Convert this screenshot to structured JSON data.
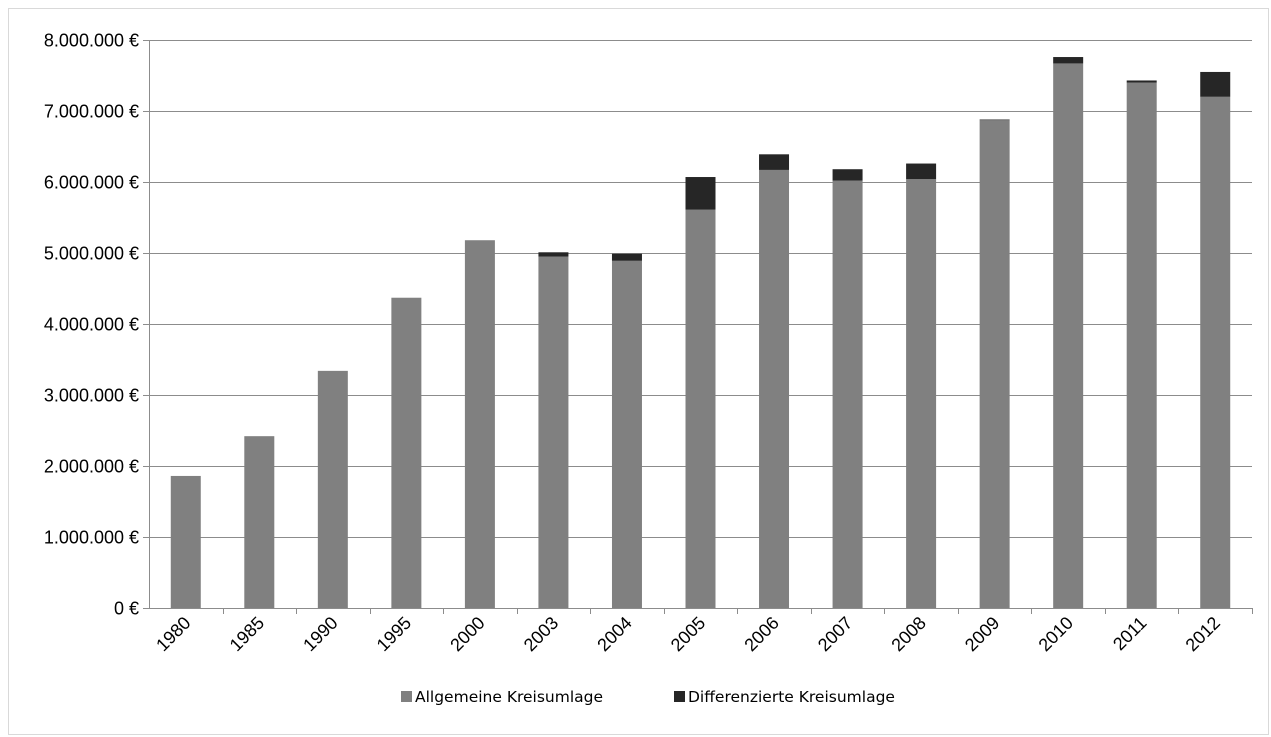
{
  "chart_data": {
    "type": "bar",
    "stacked": true,
    "categories": [
      "1980",
      "1985",
      "1990",
      "1995",
      "2000",
      "2003",
      "2004",
      "2005",
      "2006",
      "2007",
      "2008",
      "2009",
      "2010",
      "2011",
      "2012"
    ],
    "series": [
      {
        "name": "Allgemeine Kreisumlage",
        "color": "#808080",
        "values": [
          1860000,
          2420000,
          3340000,
          4370000,
          5180000,
          4950000,
          4890000,
          5610000,
          6170000,
          6020000,
          6040000,
          6870000,
          7670000,
          7400000,
          7200000
        ]
      },
      {
        "name": "Differenzierte Kreisumlage",
        "color": "#262626",
        "values": [
          0,
          0,
          0,
          0,
          0,
          60000,
          100000,
          460000,
          220000,
          160000,
          220000,
          10000,
          90000,
          30000,
          350000
        ]
      }
    ],
    "ylim": [
      0,
      8000000
    ],
    "yticks": [
      0,
      1000000,
      2000000,
      3000000,
      4000000,
      5000000,
      6000000,
      7000000,
      8000000
    ],
    "ytick_labels": [
      "0 €",
      "1.000.000 €",
      "2.000.000 €",
      "3.000.000 €",
      "4.000.000 €",
      "5.000.000 €",
      "6.000.000 €",
      "7.000.000 €",
      "8.000.000 €"
    ],
    "grid": true,
    "legend_position": "bottom",
    "xlabel": "",
    "ylabel": "",
    "title": ""
  }
}
